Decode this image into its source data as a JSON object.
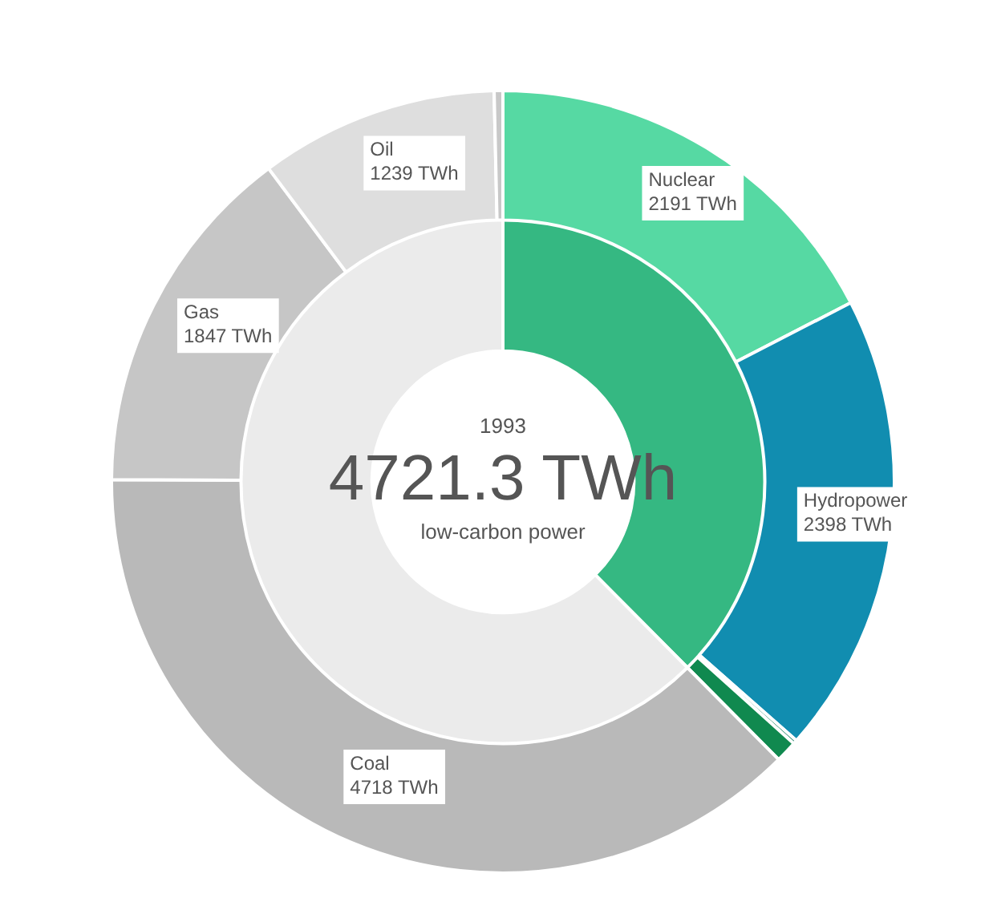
{
  "chart_data": [
    {
      "type": "donut",
      "categories": [
        "Nuclear",
        "Hydropower",
        null,
        null,
        "Coal",
        "Gas",
        "Oil",
        null
      ],
      "values": [
        2191,
        2398,
        20,
        112.3,
        4718,
        1847,
        1239,
        45
      ],
      "colors": [
        "#56d9a3",
        "#118db0",
        "#0b7a5a",
        "#10894f",
        "#b9b9b9",
        "#c6c6c6",
        "#dedede",
        "#c8c8c8"
      ],
      "value_labels": [
        "2191 TWh",
        "2398 TWh",
        null,
        null,
        "4718 TWh",
        "1847 TWh",
        "1239 TWh",
        null
      ]
    },
    {
      "type": "donut",
      "title": "1993",
      "categories": [
        "low-carbon power",
        null
      ],
      "values": [
        4721.3,
        7849
      ],
      "colors": [
        "#35b882",
        "#ebebeb"
      ],
      "value_labels": [
        "4721.3 TWh",
        null
      ]
    }
  ]
}
